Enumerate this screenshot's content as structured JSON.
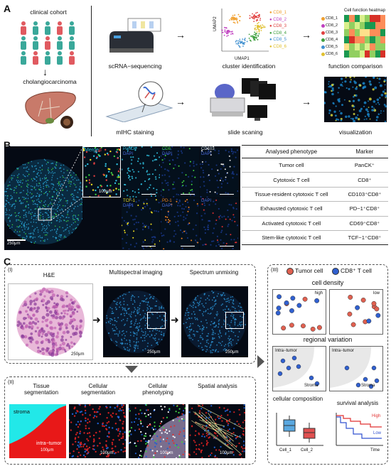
{
  "panels": {
    "a": "A",
    "b": "B",
    "c": "C"
  },
  "panelA": {
    "clinical_cohort": "clinical cohort",
    "cholangiocarcinoma": "cholangiocarcinoma",
    "scrna": "scRNA−sequencing",
    "cluster_identification": "cluster identification",
    "function_comparison": "function comparison",
    "mihc": "mIHC staining",
    "slide_scaning": "slide scaning",
    "visualization": "visualization",
    "umap_x": "UMAP1",
    "umap_y": "UMAP2",
    "umap_ticks_x": [
      "-30",
      "-20",
      "-10",
      "0",
      "10",
      "20",
      "30"
    ],
    "clusters": [
      {
        "label": "CD8_1",
        "color": "#f0a030"
      },
      {
        "label": "CD8_2",
        "color": "#c040c0"
      },
      {
        "label": "CD8_3",
        "color": "#e04040"
      },
      {
        "label": "CD8_4",
        "color": "#40a040"
      },
      {
        "label": "CD8_5",
        "color": "#4090d0"
      },
      {
        "label": "CD8_6",
        "color": "#e0c030"
      }
    ],
    "heatmap_title": "Cell function heatmap",
    "heatmap_rows": [
      "CD8_1",
      "CD8_2",
      "CD8_3",
      "CD8_4",
      "CD8_5",
      "CD8_6"
    ]
  },
  "panelB": {
    "scale_main": "250μm",
    "scale_zoom": "100μm",
    "merge_label": "Merge",
    "merge_suffix": "d",
    "tiles": [
      {
        "marker": "PanCK",
        "dapi": "DAPI",
        "color": "#30c0e0"
      },
      {
        "marker": "CD8",
        "dapi": "DAPI",
        "color": "#40d040"
      },
      {
        "marker": "CD103",
        "dapi": "DAPI",
        "color": "#e0e0e0"
      },
      {
        "marker": "TCF-1",
        "dapi": "DAPI",
        "color": "#f0e020"
      },
      {
        "marker": "PD-1",
        "dapi": "DAPI",
        "color": "#f08020"
      },
      {
        "marker": "",
        "dapi": "DAPI",
        "color": "#e03030"
      }
    ],
    "table_header": {
      "phenotype": "Analysed phenotype",
      "marker": "Marker"
    },
    "table_rows": [
      {
        "phenotype": "Tumor cell",
        "marker": "PanCK⁺"
      },
      {
        "phenotype": "Cytotoxic T cell",
        "marker": "CD8⁺"
      },
      {
        "phenotype": "Tissue-resident cytotoxic T cell",
        "marker": "CD103⁺CD8⁺"
      },
      {
        "phenotype": "Exhausted cytotoxic T cell",
        "marker": "PD−1⁺CD8⁺"
      },
      {
        "phenotype": "Activated cytotoxic T cell",
        "marker": "CD69⁺CD8⁺"
      },
      {
        "phenotype": "Stem-like cytotoxic T cell",
        "marker": "TCF−1⁺CD8⁺"
      }
    ]
  },
  "panelC": {
    "roman1": "(I)",
    "he": "H&E",
    "multispectral": "Multispectral imaging",
    "unmixing": "Spectrum unmixing",
    "scale250": "250μm",
    "roman2": "(II)",
    "tissue_seg": "Tissue segmentation",
    "cell_seg": "Cellular segmentation",
    "cell_pheno": "Cellular phenotyping",
    "spatial": "Spatial analysis",
    "stroma": "stroma",
    "intra_tumor": "intra−tumor",
    "scale100": "100μm",
    "roman3": "(III)",
    "legend_tumor": "Tumor cell",
    "legend_cd8": "CD8⁺ T cell",
    "cell_density": "cell density",
    "high": "high",
    "low": "low",
    "regional_variation": "regional variation",
    "intra_tumor_cap": "Intra−tumor",
    "stroma_cap": "Stroma",
    "cellular_composition": "cellular composition",
    "survival_analysis": "survival analysis",
    "cell1": "Cell_1",
    "cell2": "Cell_2",
    "surv_high": "High",
    "surv_low": "Low",
    "time": "Time",
    "tumor_color": "#e06050",
    "cd8_color": "#3060d0"
  }
}
